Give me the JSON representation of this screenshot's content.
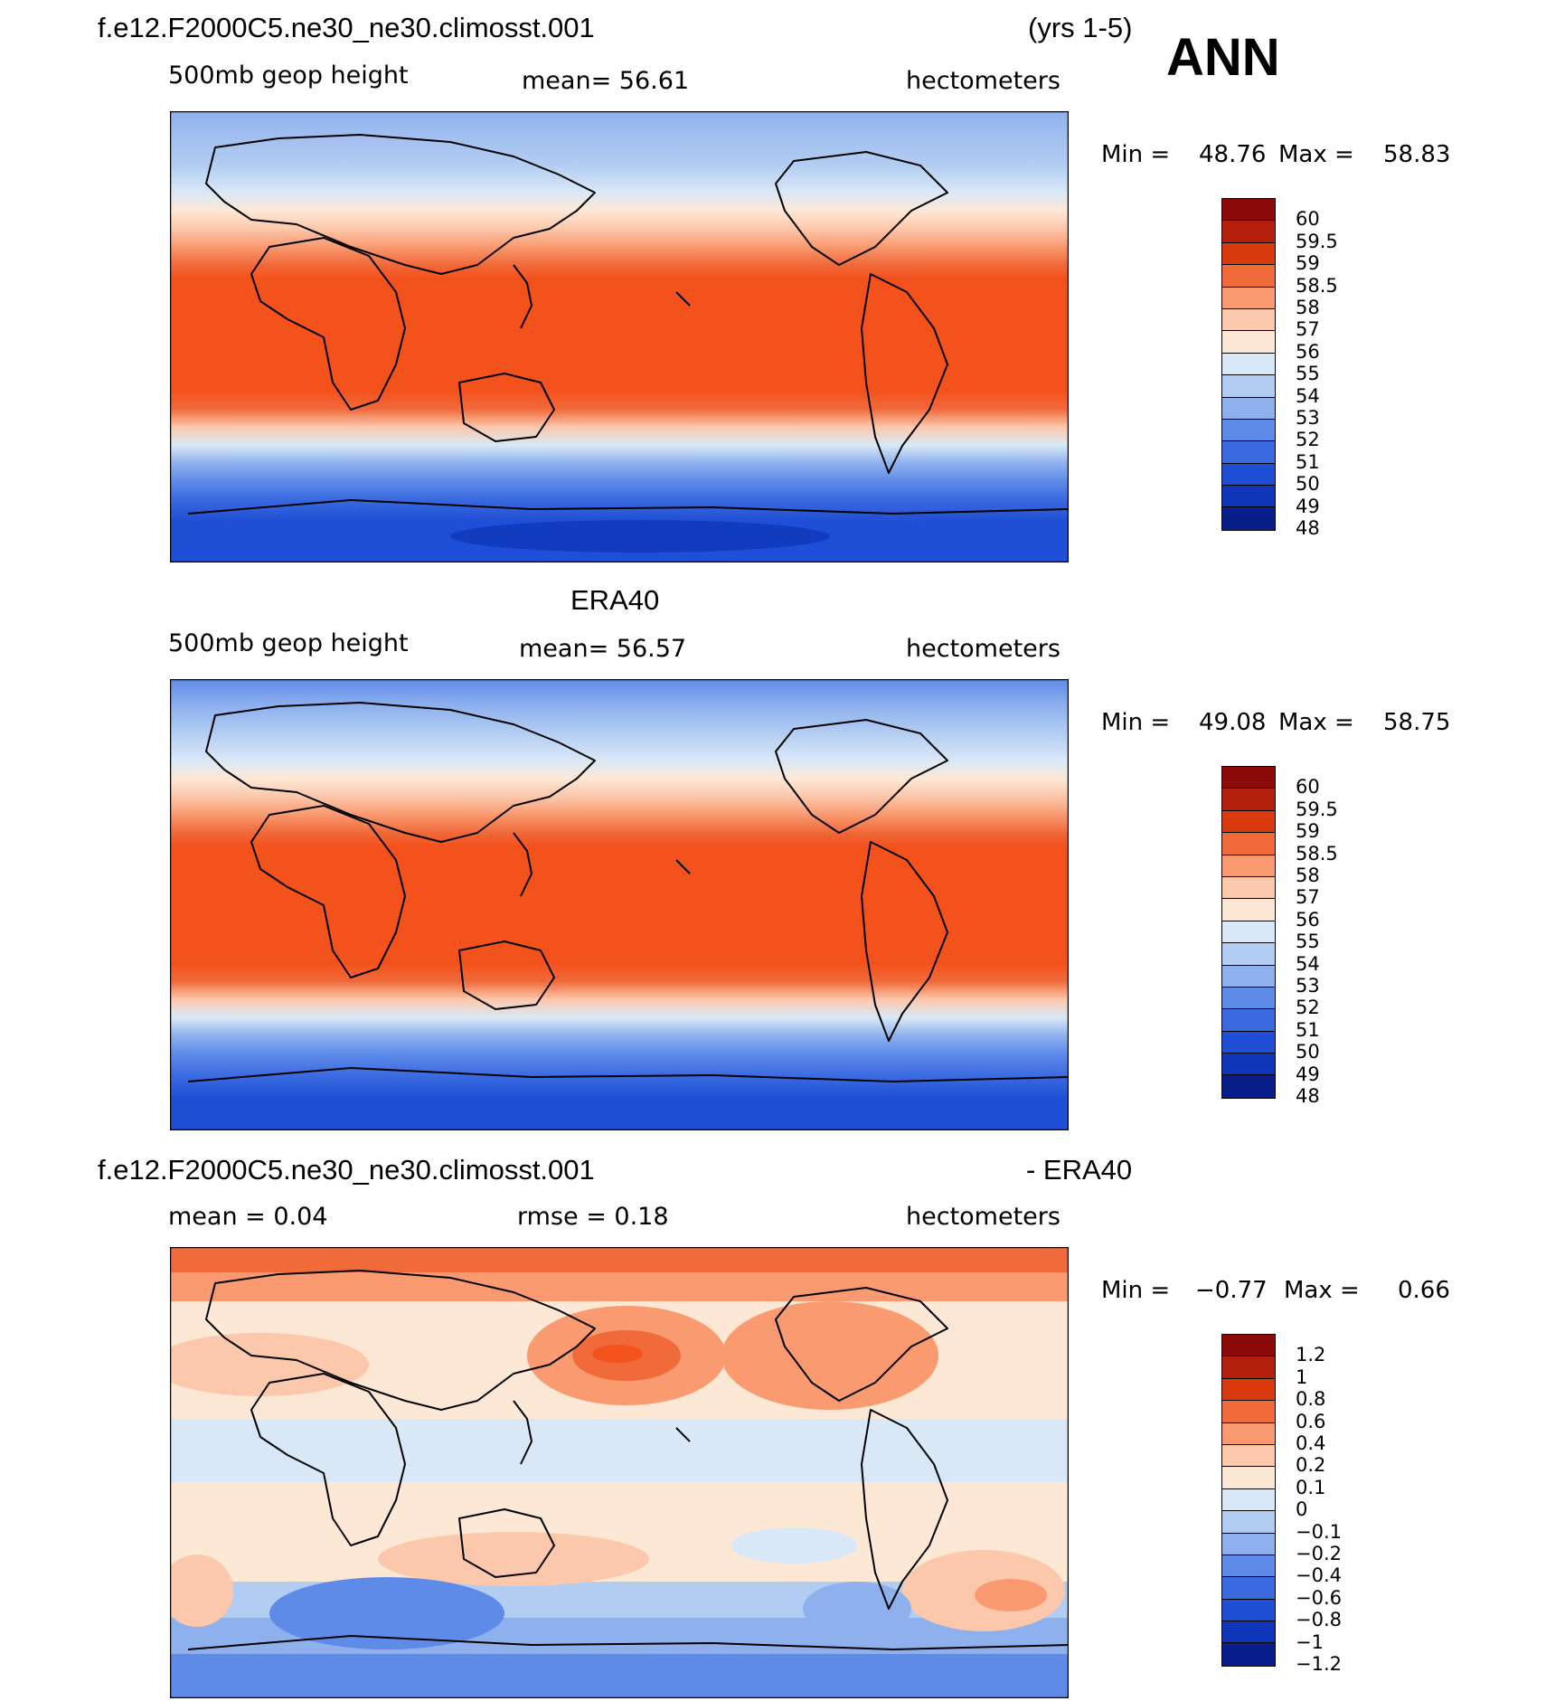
{
  "header": {
    "case_name": "f.e12.F2000C5.ne30_ne30.climosst.001",
    "years": "(yrs 1-5)",
    "season": "ANN"
  },
  "panels": [
    {
      "title": "",
      "left_label": "500mb  geop  height",
      "center_label": "mean=   56.61",
      "right_label": "hectometers",
      "minmax": {
        "min_text": "Min =",
        "min": "48.76",
        "max_text": "Max =",
        "max": "58.83"
      },
      "colorbar": {
        "colors": [
          "#8c0a0a",
          "#b5200c",
          "#d93b0e",
          "#f06a3a",
          "#f99a70",
          "#fcc8ac",
          "#fde8d6",
          "#d9e8f7",
          "#b3cdf2",
          "#8eb1ee",
          "#5f8be8",
          "#3a6ae0",
          "#1e4fd6",
          "#0f36b8",
          "#0a1e8a"
        ],
        "labels": [
          "60",
          "59.5",
          "59",
          "58.5",
          "58",
          "57",
          "56",
          "55",
          "54",
          "53",
          "52",
          "51",
          "50",
          "49",
          "48"
        ]
      }
    },
    {
      "title": "ERA40",
      "left_label": "500mb  geop  height",
      "center_label": "mean=   56.57",
      "right_label": "hectometers",
      "minmax": {
        "min_text": "Min =",
        "min": "49.08",
        "max_text": "Max =",
        "max": "58.75"
      },
      "colorbar": {
        "colors": [
          "#8c0a0a",
          "#b5200c",
          "#d93b0e",
          "#f06a3a",
          "#f99a70",
          "#fcc8ac",
          "#fde8d6",
          "#d9e8f7",
          "#b3cdf2",
          "#8eb1ee",
          "#5f8be8",
          "#3a6ae0",
          "#1e4fd6",
          "#0f36b8",
          "#0a1e8a"
        ],
        "labels": [
          "60",
          "59.5",
          "59",
          "58.5",
          "58",
          "57",
          "56",
          "55",
          "54",
          "53",
          "52",
          "51",
          "50",
          "49",
          "48"
        ]
      }
    },
    {
      "title_left": "f.e12.F2000C5.ne30_ne30.climosst.001",
      "title_right": "- ERA40",
      "left_label": "mean =     0.04",
      "center_label": "rmse  =     0.18",
      "right_label": "hectometers",
      "minmax": {
        "min_text": "Min =",
        "min": "−0.77",
        "max_text": "Max =",
        "max": "0.66"
      },
      "colorbar": {
        "colors": [
          "#8c0a0a",
          "#b5200c",
          "#d93b0e",
          "#f06a3a",
          "#f99a70",
          "#fcc8ac",
          "#fde8d6",
          "#d9e8f7",
          "#b3cdf2",
          "#8eb1ee",
          "#5f8be8",
          "#3a6ae0",
          "#1e4fd6",
          "#0f36b8",
          "#0a1e8a"
        ],
        "labels": [
          "1.2",
          "1",
          "0.8",
          "0.6",
          "0.4",
          "0.2",
          "0.1",
          "0",
          "−0.1",
          "−0.2",
          "−0.4",
          "−0.6",
          "−0.8",
          "−1",
          "−1.2"
        ]
      }
    }
  ]
}
